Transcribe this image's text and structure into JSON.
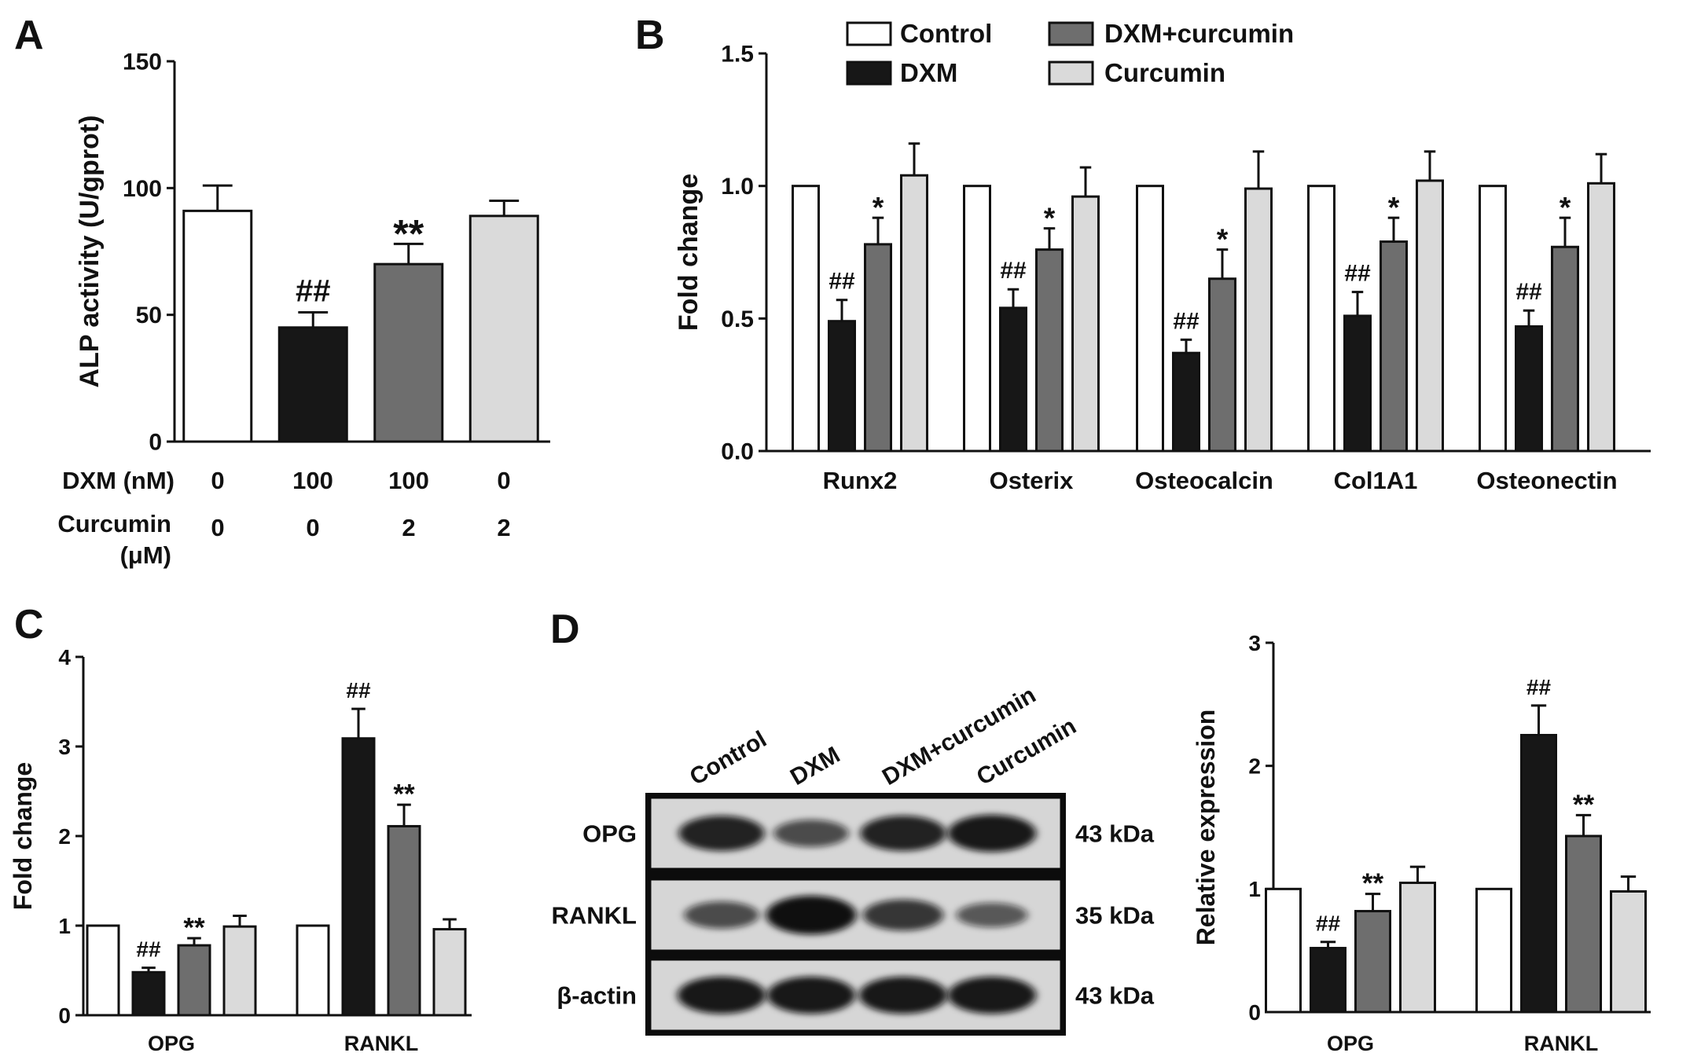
{
  "colors": {
    "Control": "#ffffff",
    "DXM": "#171717",
    "DXM+curcumin": "#6e6e6e",
    "Curcumin": "#dadada",
    "stroke": "#111111"
  },
  "panels": {
    "A": {
      "letter": "A"
    },
    "B": {
      "letter": "B"
    },
    "C": {
      "letter": "C"
    },
    "D": {
      "letter": "D"
    }
  },
  "legend": {
    "items": [
      "Control",
      "DXM",
      "DXM+curcumin",
      "Curcumin"
    ]
  },
  "treatment_table": {
    "row1_label": "DXM (nM)",
    "row1_values": [
      "0",
      "100",
      "100",
      "0"
    ],
    "row2_label_line1": "Curcumin",
    "row2_label_line2": "(μM)",
    "row2_values": [
      "0",
      "0",
      "2",
      "2"
    ]
  },
  "blot": {
    "lane_labels": [
      "Control",
      "DXM",
      "DXM+curcumin",
      "Curcumin"
    ],
    "rows": [
      {
        "label": "OPG",
        "kda": "43 kDa",
        "intensity": [
          0.85,
          0.55,
          0.85,
          0.92
        ]
      },
      {
        "label": "RANKL",
        "kda": "35 kDa",
        "intensity": [
          0.55,
          0.98,
          0.7,
          0.45
        ]
      },
      {
        "label": "β-actin",
        "kda": "43 kDa",
        "intensity": [
          0.92,
          0.92,
          0.92,
          0.92
        ]
      }
    ]
  },
  "chart_data": [
    {
      "id": "A",
      "type": "bar",
      "ylabel": "ALP activity (U/gprot)",
      "ylim": [
        0,
        150
      ],
      "yticks": [
        0,
        50,
        100,
        150
      ],
      "groups": [
        ""
      ],
      "series": [
        {
          "name": "Control",
          "values": [
            91
          ],
          "errors": [
            10
          ],
          "annotations": [
            ""
          ]
        },
        {
          "name": "DXM",
          "values": [
            45
          ],
          "errors": [
            6
          ],
          "annotations": [
            "##"
          ]
        },
        {
          "name": "DXM+curcumin",
          "values": [
            70
          ],
          "errors": [
            8
          ],
          "annotations": [
            "**"
          ]
        },
        {
          "name": "Curcumin",
          "values": [
            89
          ],
          "errors": [
            6
          ],
          "annotations": [
            ""
          ]
        }
      ]
    },
    {
      "id": "B",
      "type": "bar",
      "ylabel": "Fold change",
      "ylim": [
        0,
        1.5
      ],
      "yticks": [
        "0.0",
        "0.5",
        "1.0",
        "1.5"
      ],
      "groups": [
        "Runx2",
        "Osterix",
        "Osteocalcin",
        "Col1A1",
        "Osteonectin"
      ],
      "series": [
        {
          "name": "Control",
          "values": [
            1.0,
            1.0,
            1.0,
            1.0,
            1.0
          ],
          "errors": [
            0,
            0,
            0,
            0,
            0
          ],
          "annotations": [
            "",
            "",
            "",
            "",
            ""
          ]
        },
        {
          "name": "DXM",
          "values": [
            0.49,
            0.54,
            0.37,
            0.51,
            0.47
          ],
          "errors": [
            0.08,
            0.07,
            0.05,
            0.09,
            0.06
          ],
          "annotations": [
            "##",
            "##",
            "##",
            "##",
            "##"
          ]
        },
        {
          "name": "DXM+curcumin",
          "values": [
            0.78,
            0.76,
            0.65,
            0.79,
            0.77
          ],
          "errors": [
            0.1,
            0.08,
            0.11,
            0.09,
            0.11
          ],
          "annotations": [
            "*",
            "*",
            "*",
            "*",
            "*"
          ]
        },
        {
          "name": "Curcumin",
          "values": [
            1.04,
            0.96,
            0.99,
            1.02,
            1.01
          ],
          "errors": [
            0.12,
            0.11,
            0.14,
            0.11,
            0.11
          ],
          "annotations": [
            "",
            "",
            "",
            "",
            ""
          ]
        }
      ]
    },
    {
      "id": "C",
      "type": "bar",
      "ylabel": "Fold change",
      "ylim": [
        0,
        4
      ],
      "yticks": [
        0,
        1,
        2,
        3,
        4
      ],
      "groups": [
        "OPG",
        "RANKL"
      ],
      "series": [
        {
          "name": "Control",
          "values": [
            1.0,
            1.0
          ],
          "errors": [
            0,
            0
          ],
          "annotations": [
            "",
            ""
          ]
        },
        {
          "name": "DXM",
          "values": [
            0.48,
            3.09
          ],
          "errors": [
            0.05,
            0.33
          ],
          "annotations": [
            "##",
            "##"
          ]
        },
        {
          "name": "DXM+curcumin",
          "values": [
            0.78,
            2.11
          ],
          "errors": [
            0.08,
            0.24
          ],
          "annotations": [
            "**",
            "**"
          ]
        },
        {
          "name": "Curcumin",
          "values": [
            0.99,
            0.96
          ],
          "errors": [
            0.12,
            0.11
          ],
          "annotations": [
            "",
            ""
          ]
        }
      ]
    },
    {
      "id": "D",
      "type": "bar",
      "ylabel": "Relative expression",
      "ylim": [
        0,
        3
      ],
      "yticks": [
        0,
        1,
        2,
        3
      ],
      "groups": [
        "OPG",
        "RANKL"
      ],
      "series": [
        {
          "name": "Control",
          "values": [
            1.0,
            1.0
          ],
          "errors": [
            0,
            0
          ],
          "annotations": [
            "",
            ""
          ]
        },
        {
          "name": "DXM",
          "values": [
            0.52,
            2.25
          ],
          "errors": [
            0.05,
            0.24
          ],
          "annotations": [
            "##",
            "##"
          ]
        },
        {
          "name": "DXM+curcumin",
          "values": [
            0.82,
            1.43
          ],
          "errors": [
            0.14,
            0.17
          ],
          "annotations": [
            "**",
            "**"
          ]
        },
        {
          "name": "Curcumin",
          "values": [
            1.05,
            0.98
          ],
          "errors": [
            0.13,
            0.12
          ],
          "annotations": [
            "",
            ""
          ]
        }
      ]
    }
  ]
}
